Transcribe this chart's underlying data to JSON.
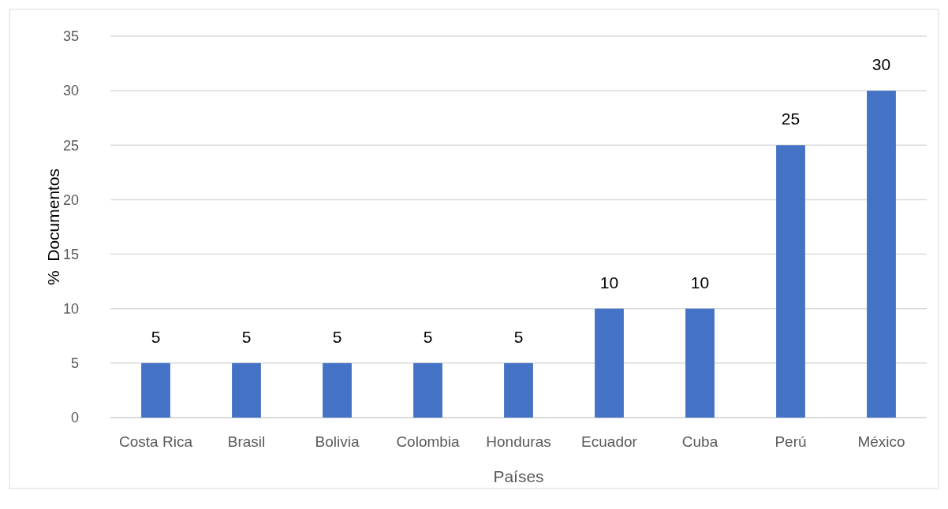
{
  "chart_data": {
    "type": "bar",
    "xlabel": "Países",
    "ylabel": "%  Documentos",
    "categories": [
      "Costa Rica",
      "Brasil",
      "Bolivia",
      "Colombia",
      "Honduras",
      "Ecuador",
      "Cuba",
      "Perú",
      "México"
    ],
    "values": [
      5,
      5,
      5,
      5,
      5,
      10,
      10,
      25,
      30
    ],
    "color": "#4472c4",
    "ylim": [
      0,
      35
    ],
    "yticks": [
      0,
      5,
      10,
      15,
      20,
      25,
      30,
      35
    ],
    "grid": "y",
    "data_labels": true
  }
}
